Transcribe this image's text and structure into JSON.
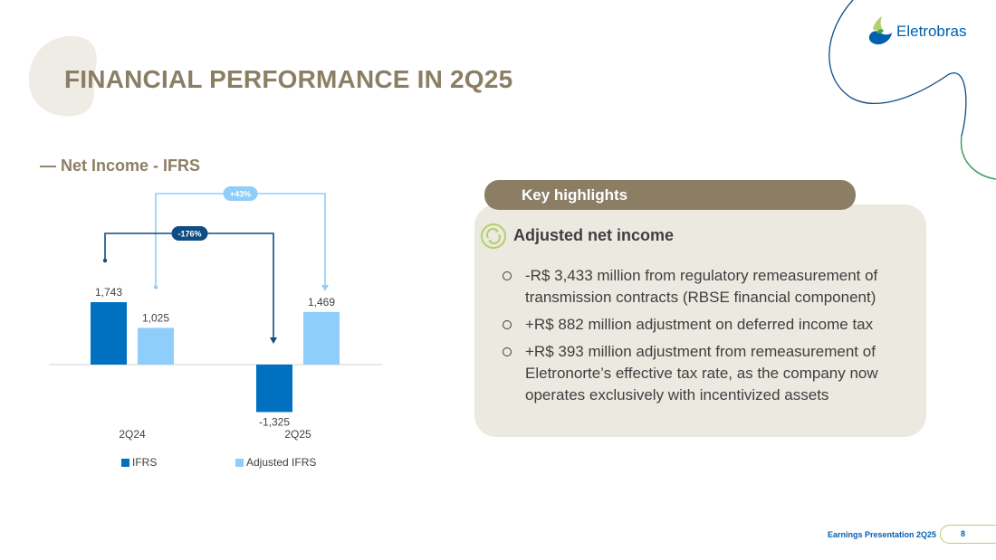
{
  "header": {
    "title": "FINANCIAL PERFORMANCE IN 2Q25",
    "logo_text": "Eletrobras"
  },
  "section": {
    "title": "— Net Income - IFRS"
  },
  "chart_data": {
    "type": "bar",
    "title": "Net Income - IFRS",
    "categories": [
      "2Q24",
      "2Q25"
    ],
    "series": [
      {
        "name": "IFRS",
        "color": "#0070c0",
        "values": [
          1743,
          -1325
        ],
        "labels": [
          "1,743",
          "-1,325"
        ]
      },
      {
        "name": "Adjusted IFRS",
        "color": "#8fcdfa",
        "values": [
          1025,
          1469
        ],
        "labels": [
          "1,025",
          "1,469"
        ]
      }
    ],
    "annotations": [
      {
        "label": "+43%",
        "from_series": "Adjusted IFRS",
        "color": "#8fcdfa"
      },
      {
        "label": "-176%",
        "from_series": "IFRS",
        "color": "#0f4c81"
      }
    ],
    "xlabel": "",
    "ylabel": "",
    "legend": "bottom"
  },
  "key_highlights": {
    "title": "Key highlights",
    "subtitle": "Adjusted net income",
    "bullets": [
      "-R$ 3,433 million from regulatory remeasurement of transmission contracts (RBSE financial component)",
      "+R$ 882 million adjustment on deferred income tax",
      "+R$ 393 million adjustment from remeasurement of Eletronorte’s effective tax rate, as the company now operates exclusively with incentivized assets"
    ]
  },
  "footer": {
    "text": "Earnings Presentation 2Q25",
    "page": "8"
  },
  "colors": {
    "brand_brown": "#8b7e64",
    "brand_blue": "#0060b0",
    "ifrs": "#0070c0",
    "adjusted": "#8fcdfa",
    "panel_bg": "#ebe9e0"
  }
}
